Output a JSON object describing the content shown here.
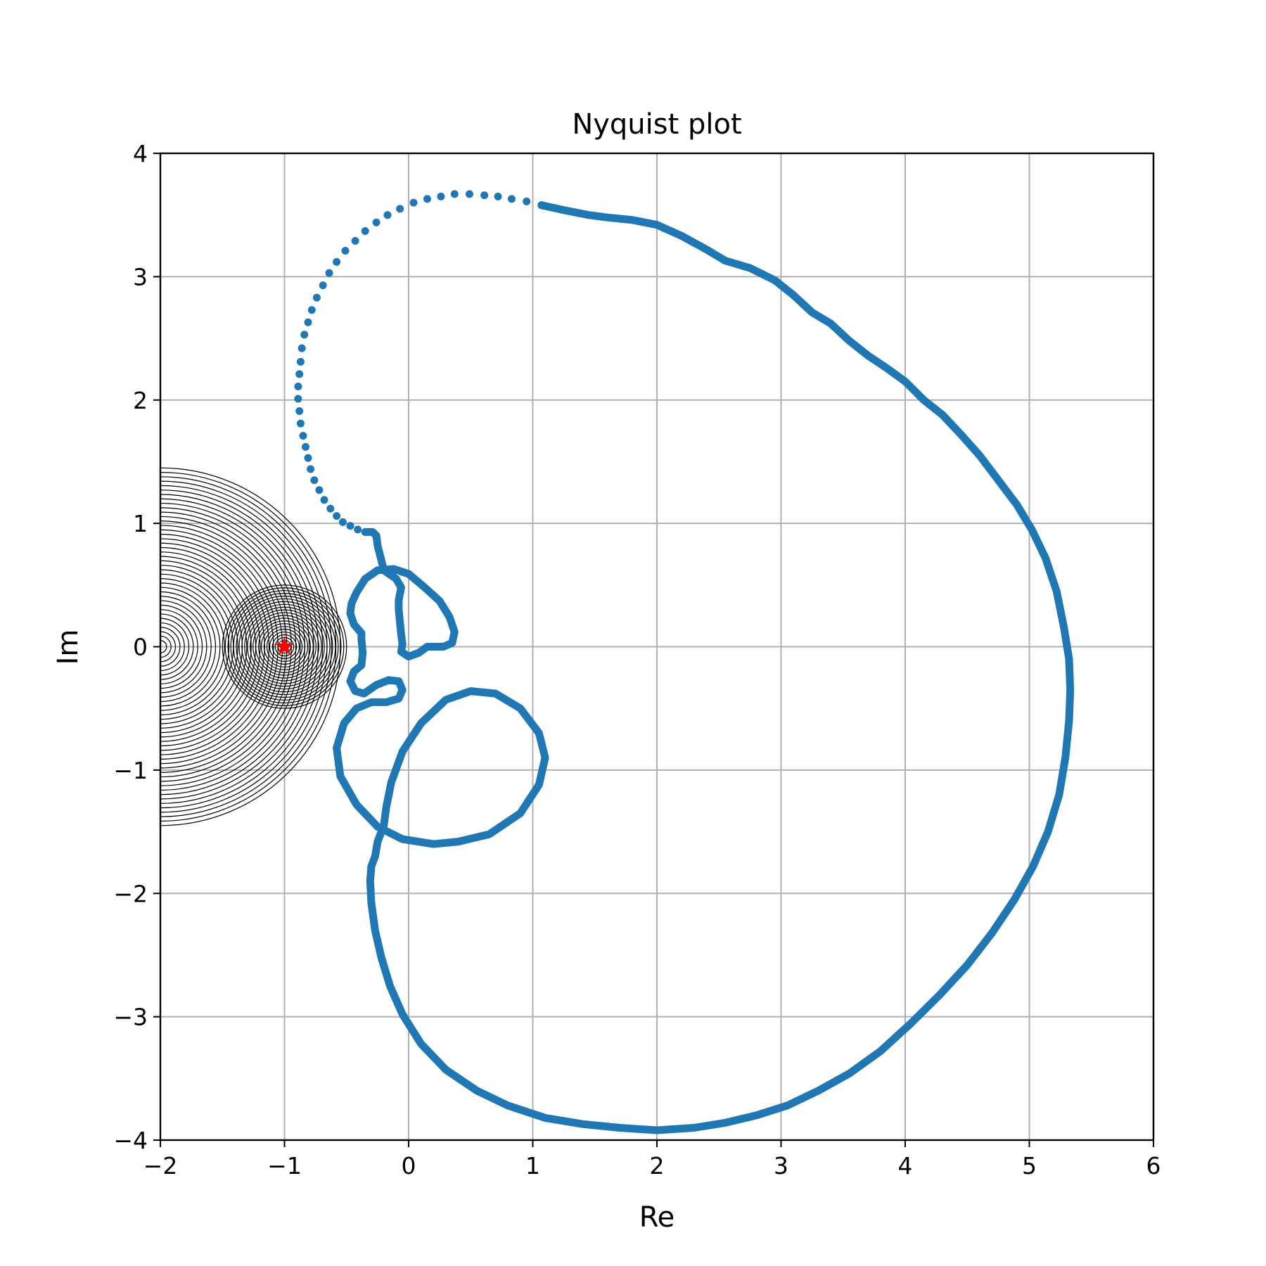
{
  "chart_data": {
    "type": "scatter",
    "title": "Nyquist plot",
    "xlabel": "Re",
    "ylabel": "Im",
    "xlim": [
      -2,
      6
    ],
    "ylim": [
      -4,
      4
    ],
    "xticks": [
      -2,
      -1,
      0,
      1,
      2,
      3,
      4,
      5,
      6
    ],
    "yticks": [
      -4,
      -3,
      -2,
      -1,
      0,
      1,
      2,
      3,
      4
    ],
    "xtick_labels": [
      "−2",
      "−1",
      "0",
      "1",
      "2",
      "3",
      "4",
      "5",
      "6"
    ],
    "ytick_labels": [
      "−4",
      "−3",
      "−2",
      "−1",
      "0",
      "1",
      "2",
      "3",
      "4"
    ],
    "grid": true,
    "colors": {
      "curve": "#1f77b4",
      "marker": "#ff0000",
      "circles": "#000000",
      "grid": "#b0b0b0"
    },
    "critical_point": {
      "x": -1,
      "y": 0,
      "marker": "star"
    },
    "large_circle_family": {
      "center": [
        -2,
        0
      ],
      "radius_min": 0.05,
      "radius_max": 1.45,
      "count": 40
    },
    "small_circle_family": {
      "center": [
        -1,
        0
      ],
      "radius_min": 0.03,
      "radius_max": 0.5,
      "count": 22
    },
    "sparse_points": [
      [
        -0.35,
        0.93
      ],
      [
        -0.41,
        0.95
      ],
      [
        -0.47,
        0.98
      ],
      [
        -0.53,
        1.01
      ],
      [
        -0.58,
        1.06
      ],
      [
        -0.63,
        1.12
      ],
      [
        -0.68,
        1.19
      ],
      [
        -0.72,
        1.27
      ],
      [
        -0.76,
        1.35
      ],
      [
        -0.79,
        1.44
      ],
      [
        -0.81,
        1.53
      ],
      [
        -0.83,
        1.62
      ],
      [
        -0.85,
        1.71
      ],
      [
        -0.87,
        1.81
      ],
      [
        -0.88,
        1.91
      ],
      [
        -0.89,
        2.01
      ],
      [
        -0.89,
        2.11
      ],
      [
        -0.88,
        2.21
      ],
      [
        -0.87,
        2.31
      ],
      [
        -0.86,
        2.42
      ],
      [
        -0.84,
        2.53
      ],
      [
        -0.81,
        2.63
      ],
      [
        -0.78,
        2.73
      ],
      [
        -0.74,
        2.83
      ],
      [
        -0.69,
        2.93
      ],
      [
        -0.64,
        3.03
      ],
      [
        -0.58,
        3.12
      ],
      [
        -0.51,
        3.21
      ],
      [
        -0.43,
        3.29
      ],
      [
        -0.35,
        3.37
      ],
      [
        -0.26,
        3.44
      ],
      [
        -0.17,
        3.5
      ],
      [
        -0.07,
        3.55
      ],
      [
        0.04,
        3.6
      ],
      [
        0.15,
        3.63
      ],
      [
        0.26,
        3.65
      ],
      [
        0.37,
        3.67
      ],
      [
        0.49,
        3.67
      ],
      [
        0.61,
        3.66
      ],
      [
        0.72,
        3.65
      ],
      [
        0.83,
        3.63
      ],
      [
        0.95,
        3.61
      ],
      [
        1.07,
        3.58
      ]
    ],
    "dense_curve": [
      [
        1.07,
        3.58
      ],
      [
        1.25,
        3.54
      ],
      [
        1.45,
        3.5
      ],
      [
        1.6,
        3.48
      ],
      [
        1.8,
        3.46
      ],
      [
        2.0,
        3.42
      ],
      [
        2.2,
        3.33
      ],
      [
        2.4,
        3.22
      ],
      [
        2.55,
        3.13
      ],
      [
        2.75,
        3.07
      ],
      [
        2.95,
        2.97
      ],
      [
        3.1,
        2.85
      ],
      [
        3.25,
        2.71
      ],
      [
        3.4,
        2.62
      ],
      [
        3.55,
        2.48
      ],
      [
        3.7,
        2.36
      ],
      [
        3.85,
        2.26
      ],
      [
        4.0,
        2.15
      ],
      [
        4.15,
        2.0
      ],
      [
        4.3,
        1.88
      ],
      [
        4.45,
        1.72
      ],
      [
        4.6,
        1.55
      ],
      [
        4.75,
        1.35
      ],
      [
        4.9,
        1.15
      ],
      [
        5.02,
        0.95
      ],
      [
        5.13,
        0.72
      ],
      [
        5.22,
        0.45
      ],
      [
        5.28,
        0.15
      ],
      [
        5.32,
        -0.1
      ],
      [
        5.33,
        -0.35
      ],
      [
        5.32,
        -0.6
      ],
      [
        5.29,
        -0.9
      ],
      [
        5.24,
        -1.2
      ],
      [
        5.15,
        -1.5
      ],
      [
        5.03,
        -1.78
      ],
      [
        4.88,
        -2.05
      ],
      [
        4.7,
        -2.32
      ],
      [
        4.5,
        -2.58
      ],
      [
        4.28,
        -2.82
      ],
      [
        4.05,
        -3.05
      ],
      [
        3.8,
        -3.28
      ],
      [
        3.55,
        -3.46
      ],
      [
        3.3,
        -3.6
      ],
      [
        3.05,
        -3.72
      ],
      [
        2.8,
        -3.8
      ],
      [
        2.55,
        -3.86
      ],
      [
        2.3,
        -3.9
      ],
      [
        2.0,
        -3.92
      ],
      [
        1.7,
        -3.9
      ],
      [
        1.4,
        -3.87
      ],
      [
        1.1,
        -3.82
      ],
      [
        0.8,
        -3.72
      ],
      [
        0.55,
        -3.6
      ],
      [
        0.3,
        -3.43
      ],
      [
        0.1,
        -3.22
      ],
      [
        -0.05,
        -2.98
      ],
      [
        -0.15,
        -2.75
      ],
      [
        -0.22,
        -2.52
      ],
      [
        -0.27,
        -2.3
      ],
      [
        -0.3,
        -2.08
      ],
      [
        -0.31,
        -1.9
      ],
      [
        -0.3,
        -1.78
      ],
      [
        -0.27,
        -1.7
      ],
      [
        -0.25,
        -1.58
      ],
      [
        -0.2,
        -1.45
      ],
      [
        -0.18,
        -1.3
      ],
      [
        -0.14,
        -1.1
      ],
      [
        -0.05,
        -0.85
      ],
      [
        0.1,
        -0.62
      ],
      [
        0.3,
        -0.43
      ],
      [
        0.5,
        -0.36
      ],
      [
        0.7,
        -0.38
      ],
      [
        0.9,
        -0.5
      ],
      [
        1.05,
        -0.7
      ],
      [
        1.1,
        -0.9
      ],
      [
        1.05,
        -1.12
      ],
      [
        0.9,
        -1.35
      ],
      [
        0.65,
        -1.52
      ],
      [
        0.4,
        -1.58
      ],
      [
        0.2,
        -1.6
      ],
      [
        -0.05,
        -1.56
      ],
      [
        -0.25,
        -1.46
      ],
      [
        -0.42,
        -1.28
      ],
      [
        -0.55,
        -1.05
      ],
      [
        -0.58,
        -0.82
      ],
      [
        -0.52,
        -0.62
      ],
      [
        -0.42,
        -0.5
      ],
      [
        -0.3,
        -0.45
      ],
      [
        -0.18,
        -0.45
      ],
      [
        -0.08,
        -0.42
      ],
      [
        -0.05,
        -0.35
      ],
      [
        -0.08,
        -0.28
      ],
      [
        -0.16,
        -0.27
      ],
      [
        -0.26,
        -0.31
      ],
      [
        -0.36,
        -0.38
      ],
      [
        -0.43,
        -0.36
      ],
      [
        -0.47,
        -0.28
      ],
      [
        -0.44,
        -0.2
      ],
      [
        -0.38,
        -0.15
      ],
      [
        -0.37,
        -0.05
      ],
      [
        -0.38,
        0.06
      ],
      [
        -0.38,
        0.11
      ],
      [
        -0.44,
        0.18
      ],
      [
        -0.47,
        0.27
      ],
      [
        -0.46,
        0.35
      ],
      [
        -0.42,
        0.44
      ],
      [
        -0.35,
        0.55
      ],
      [
        -0.25,
        0.62
      ],
      [
        -0.12,
        0.63
      ],
      [
        0.0,
        0.59
      ],
      [
        0.13,
        0.48
      ],
      [
        0.25,
        0.37
      ],
      [
        0.33,
        0.24
      ],
      [
        0.37,
        0.12
      ],
      [
        0.35,
        0.03
      ],
      [
        0.28,
        0.0
      ],
      [
        0.2,
        0.0
      ],
      [
        0.15,
        0.0
      ],
      [
        0.08,
        -0.05
      ],
      [
        0.0,
        -0.08
      ],
      [
        -0.06,
        -0.04
      ],
      [
        -0.05,
        0.02
      ],
      [
        -0.06,
        0.1
      ],
      [
        -0.07,
        0.2
      ],
      [
        -0.08,
        0.3
      ],
      [
        -0.08,
        0.38
      ],
      [
        -0.06,
        0.48
      ],
      [
        -0.1,
        0.55
      ],
      [
        -0.2,
        0.62
      ],
      [
        -0.22,
        0.7
      ],
      [
        -0.25,
        0.82
      ],
      [
        -0.26,
        0.9
      ],
      [
        -0.29,
        0.93
      ],
      [
        -0.35,
        0.93
      ]
    ]
  }
}
